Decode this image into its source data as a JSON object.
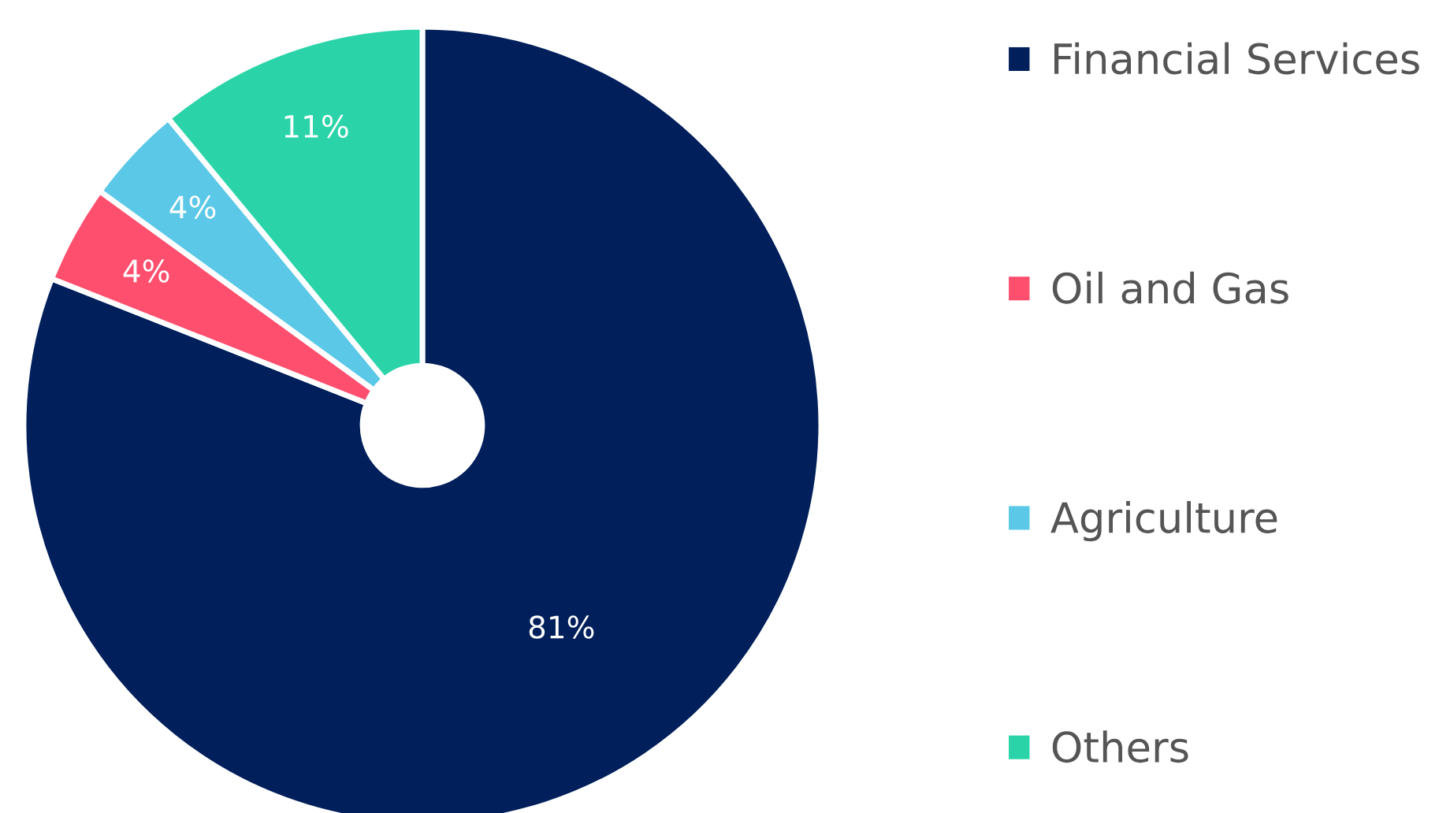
{
  "chart_data": {
    "type": "donut",
    "categories": [
      "Financial Services",
      "Oil and Gas",
      "Agriculture",
      "Others"
    ],
    "values": [
      81,
      4,
      4,
      11
    ],
    "colors": [
      "#001f5b",
      "#ff4f6e",
      "#5bc8e8",
      "#2ad4a8"
    ],
    "value_labels": [
      "81%",
      "4%",
      "4%",
      "11%"
    ],
    "legend": "right"
  }
}
